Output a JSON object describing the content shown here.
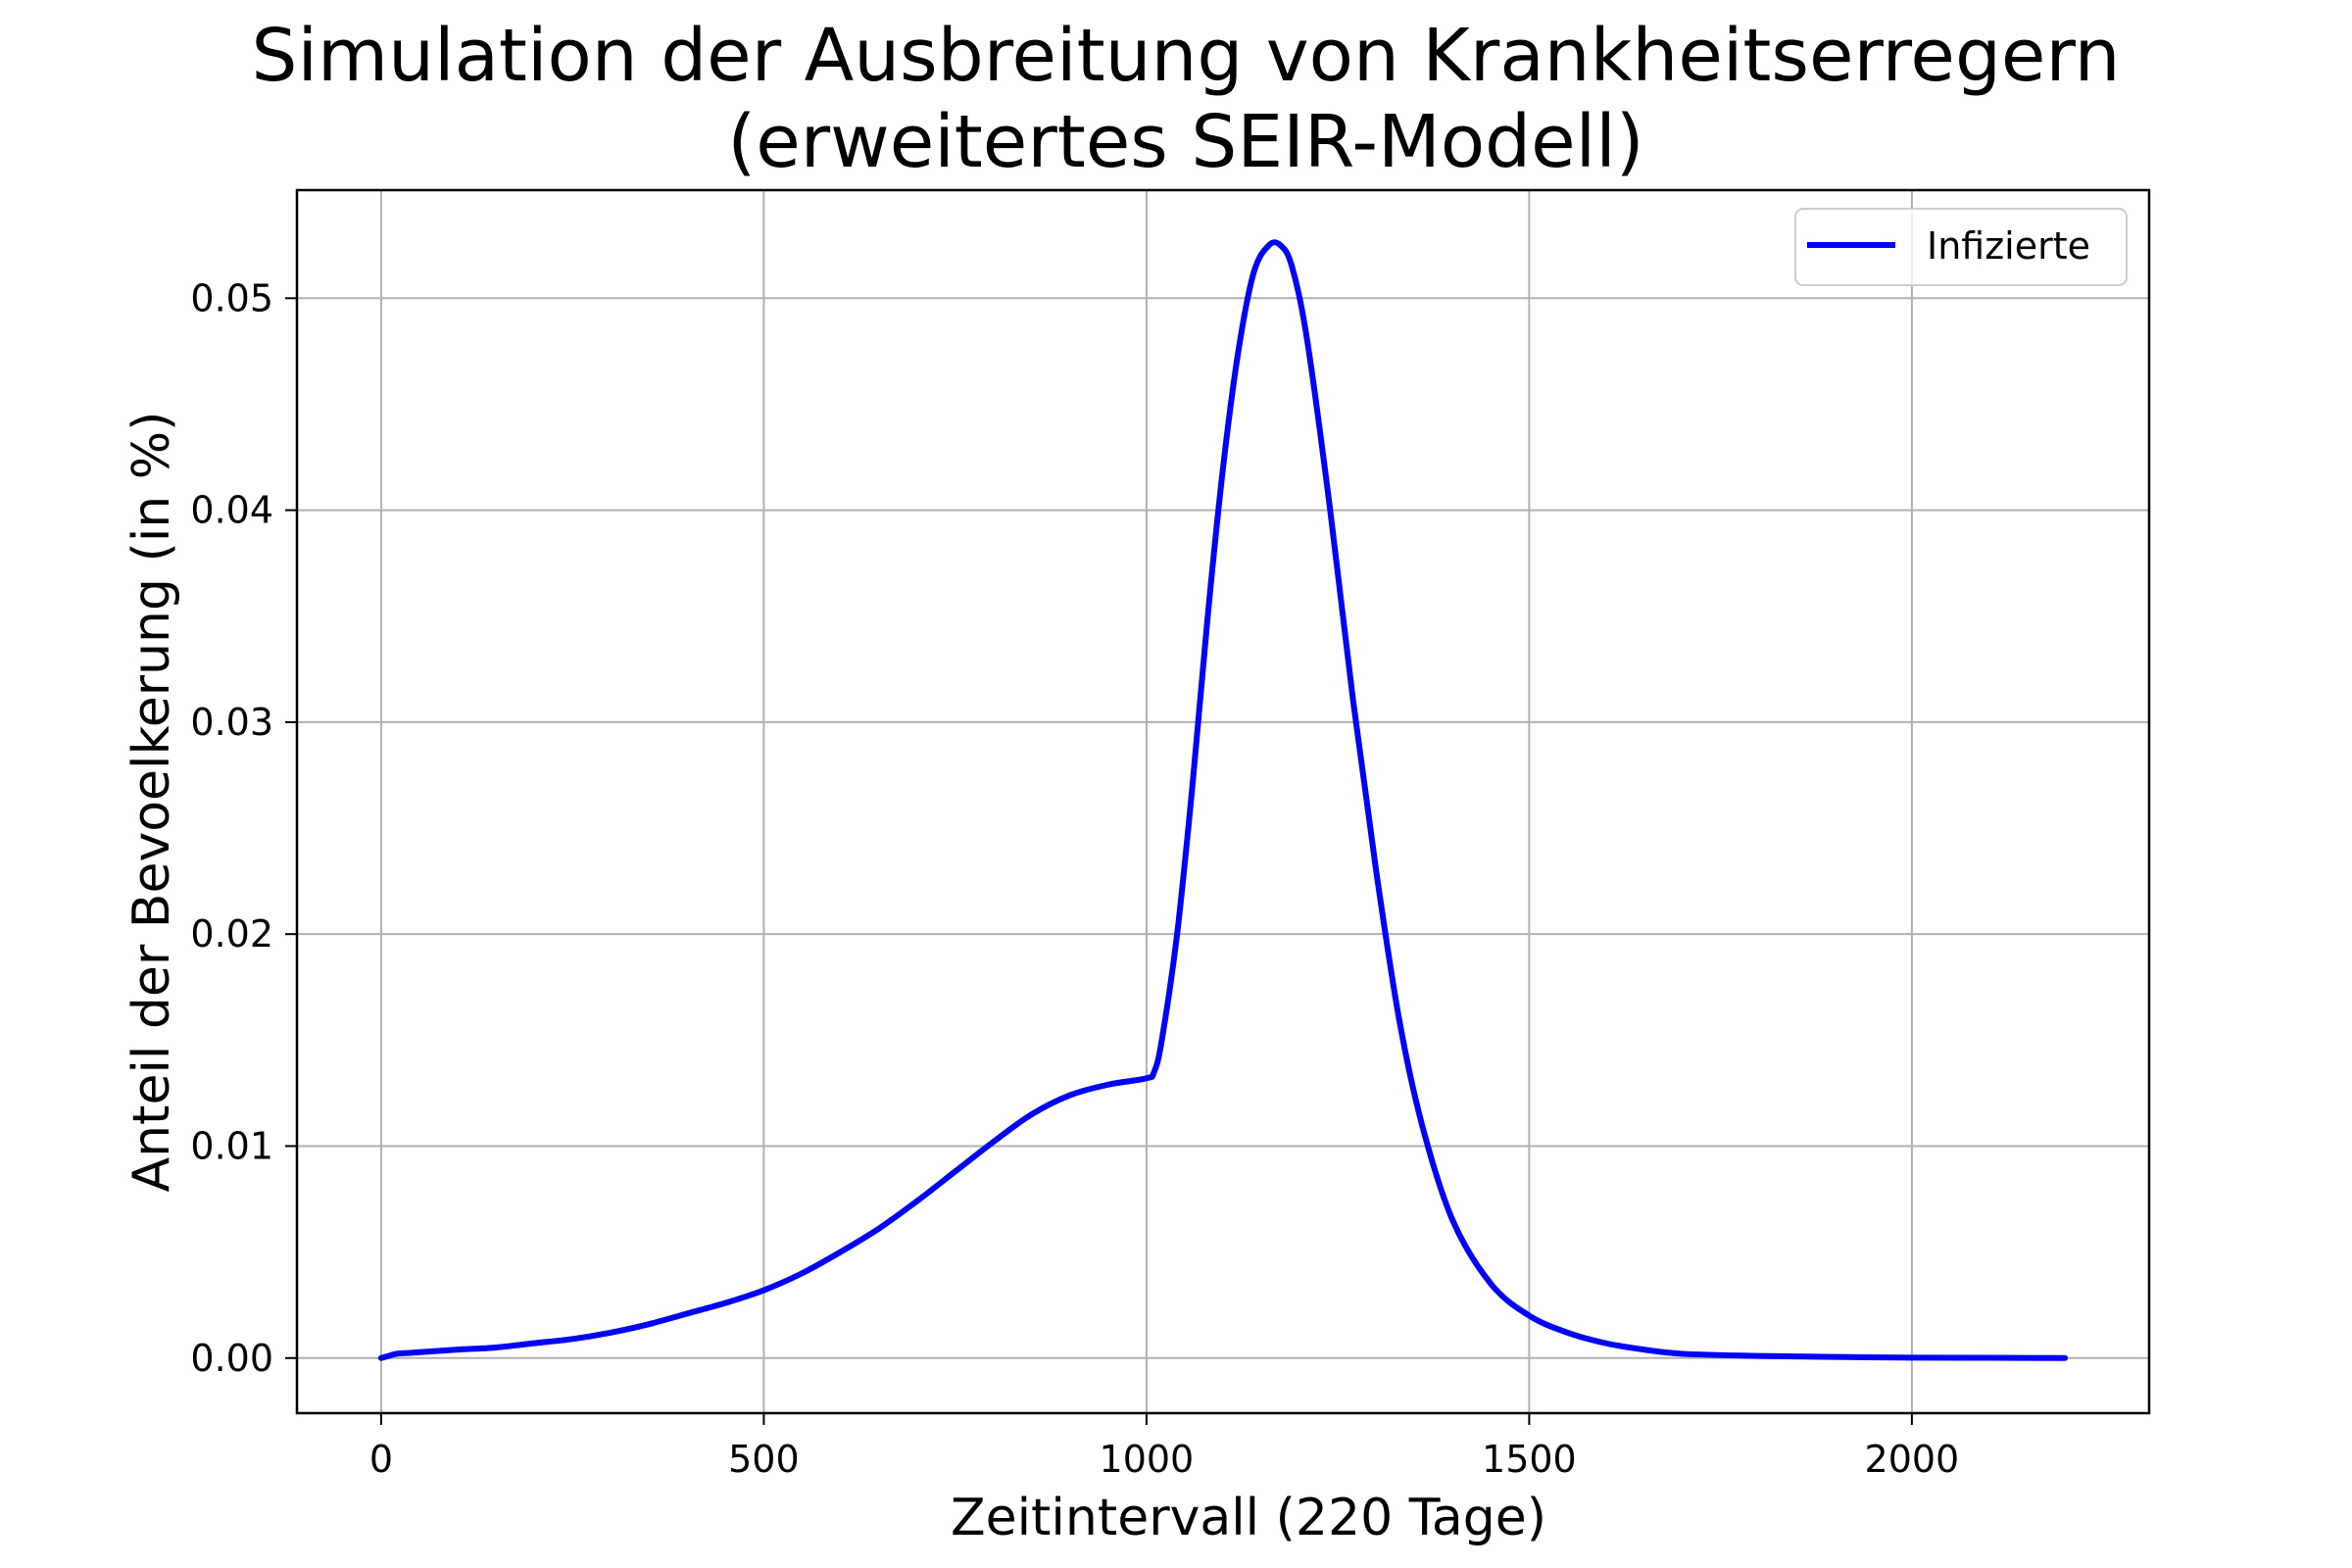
{
  "chart_data": {
    "type": "line",
    "title_lines": [
      "Simulation der Ausbreitung von Krankheitserregern",
      "(erweitertes SEIR-Modell)"
    ],
    "xlabel": "Zeitintervall (220 Tage)",
    "ylabel": "Anteil der Bevoelkerung (in %)",
    "xlim": [
      -110,
      2310
    ],
    "ylim": [
      -0.0026,
      0.0551
    ],
    "xticks": [
      0,
      500,
      1000,
      1500,
      2000
    ],
    "xtick_labels": [
      "0",
      "500",
      "1000",
      "1500",
      "2000"
    ],
    "yticks": [
      0.0,
      0.01,
      0.02,
      0.03,
      0.04,
      0.05
    ],
    "ytick_labels": [
      "0.00",
      "0.01",
      "0.02",
      "0.03",
      "0.04",
      "0.05"
    ],
    "grid": true,
    "legend_position": "top-right",
    "series": [
      {
        "name": "Infizierte",
        "color": "#0000ff",
        "x": [
          0,
          10,
          20,
          40,
          60,
          100,
          150,
          200,
          250,
          300,
          350,
          400,
          450,
          500,
          550,
          600,
          650,
          700,
          750,
          800,
          850,
          900,
          950,
          1000,
          1010,
          1020,
          1040,
          1060,
          1080,
          1100,
          1120,
          1140,
          1160,
          1175,
          1190,
          1210,
          1240,
          1270,
          1300,
          1330,
          1360,
          1400,
          1450,
          1500,
          1550,
          1600,
          1650,
          1700,
          1800,
          1900,
          2000,
          2100,
          2200
        ],
        "y": [
          0.0,
          0.0001,
          0.0002,
          0.00025,
          0.0003,
          0.0004,
          0.0005,
          0.0007,
          0.0009,
          0.0012,
          0.0016,
          0.0021,
          0.0026,
          0.0032,
          0.004,
          0.005,
          0.0061,
          0.0074,
          0.0088,
          0.0102,
          0.0115,
          0.0124,
          0.0129,
          0.0132,
          0.0135,
          0.015,
          0.02,
          0.027,
          0.035,
          0.042,
          0.0475,
          0.0512,
          0.0525,
          0.0525,
          0.0515,
          0.048,
          0.04,
          0.031,
          0.023,
          0.016,
          0.011,
          0.0065,
          0.0035,
          0.002,
          0.0012,
          0.0007,
          0.0004,
          0.0002,
          0.0001,
          5e-05,
          2e-05,
          1e-05,
          0.0
        ]
      }
    ]
  }
}
